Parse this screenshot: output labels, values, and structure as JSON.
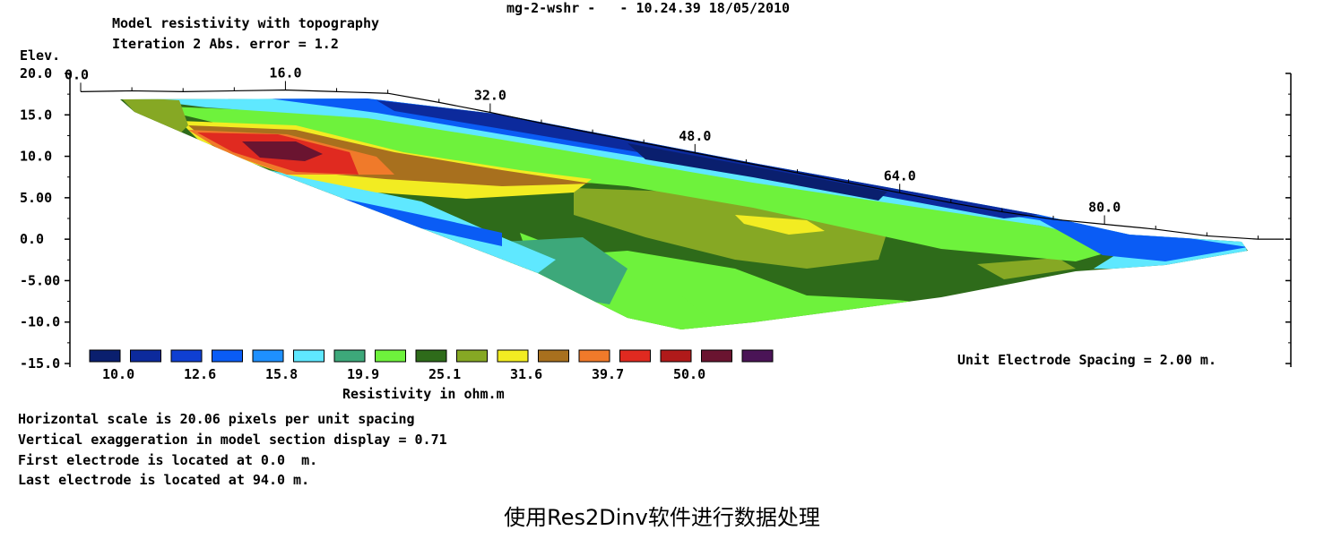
{
  "header": {
    "title_line1": "Model resistivity with topography",
    "title_line2": "Iteration 2 Abs. error = 1.2",
    "file_stamp": "mg-2-wshr -   - 10.24.39 18/05/2010"
  },
  "chart_data": {
    "type": "heatmap",
    "title": "Model resistivity with topography",
    "subtitle": "Iteration 2 Abs. error = 1.2",
    "ylabel": "Elev.",
    "x_ticks": [
      "0.0",
      "16.0",
      "32.0",
      "48.0",
      "64.0",
      "80.0"
    ],
    "x_tick_values": [
      0,
      16,
      32,
      48,
      64,
      80
    ],
    "y_ticks": [
      "20.0",
      "15.0",
      "10.0",
      "5.00",
      "0.0",
      "-5.00",
      "-10.0",
      "-15.0"
    ],
    "y_tick_values": [
      20,
      15,
      10,
      5,
      0,
      -5,
      -10,
      -15
    ],
    "xlim": [
      0,
      94
    ],
    "ylim": [
      -15,
      20
    ],
    "legend": {
      "title": "Resistivity in ohm.m",
      "labels": [
        "10.0",
        "12.6",
        "15.8",
        "19.9",
        "25.1",
        "31.6",
        "39.7",
        "50.0"
      ],
      "colors": [
        "#0a1f6e",
        "#0c2a9c",
        "#0f3fd2",
        "#0a5cf5",
        "#1e90ff",
        "#5fe8ff",
        "#3da87a",
        "#6ef23c",
        "#2e6b1a",
        "#86a824",
        "#f2ec22",
        "#a8701e",
        "#f07a2a",
        "#e02a20",
        "#b01a1a",
        "#6a1430",
        "#4a1456"
      ]
    },
    "topography": {
      "x": [
        0,
        4,
        8,
        12,
        16,
        20,
        24,
        28,
        32,
        36,
        40,
        44,
        48,
        52,
        56,
        60,
        64,
        68,
        72,
        76,
        80,
        84,
        88,
        92,
        94
      ],
      "elev": [
        17.8,
        17.9,
        17.8,
        17.9,
        18.0,
        17.8,
        17.6,
        16.5,
        15.3,
        14.0,
        12.8,
        11.6,
        10.4,
        9.2,
        8.0,
        6.8,
        5.6,
        4.4,
        3.3,
        2.4,
        1.8,
        1.2,
        0.4,
        0.0,
        0.0
      ]
    },
    "unit_electrode_spacing": "Unit Electrode Spacing = 2.00 m."
  },
  "footer": {
    "line1": "Horizontal scale is 20.06 pixels per unit spacing",
    "line2": "Vertical exaggeration in model section display = 0.71",
    "line3": "First electrode is located at 0.0  m.",
    "line4": "Last electrode is located at 94.0 m."
  },
  "caption": "使用Res2Dinv软件进行数据处理"
}
